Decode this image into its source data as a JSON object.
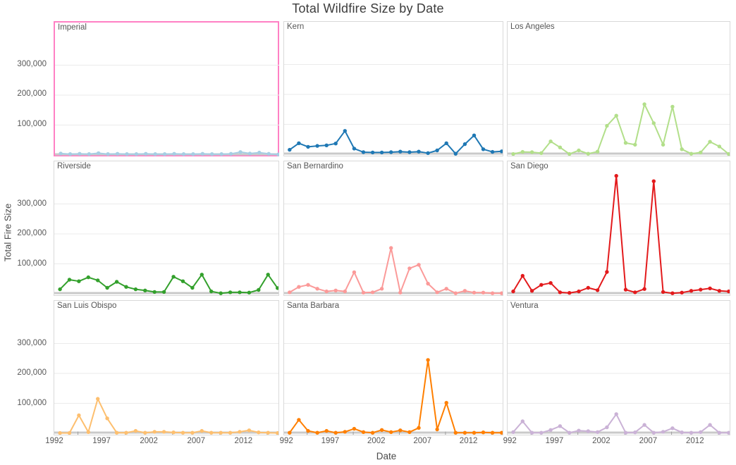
{
  "title": "Total Wildfire Size by Date",
  "y_axis": {
    "title": "Total Fire Size",
    "tick_labels": [
      "300,000",
      "200,000",
      "100,000"
    ],
    "tick_values": [
      300000,
      200000,
      100000
    ]
  },
  "x_axis": {
    "title": "Date",
    "tick_labels": [
      "1992",
      "1997",
      "2002",
      "2007",
      "2012"
    ],
    "tick_values": [
      1992,
      1997,
      2002,
      2007,
      2012
    ]
  },
  "selection": {
    "selected_facet": "Imperial",
    "highlight_color": "#ff80c4"
  },
  "chart_data": {
    "type": "line",
    "title": "Total Wildfire Size by Date",
    "xlabel": "Date",
    "ylabel": "Total Fire Size",
    "facet_layout": "3x3 small multiples by county",
    "grid": "horizontal gridlines on",
    "legend": "none",
    "x": [
      1992,
      1993,
      1994,
      1995,
      1996,
      1997,
      1998,
      1999,
      2000,
      2001,
      2002,
      2003,
      2004,
      2005,
      2006,
      2007,
      2008,
      2009,
      2010,
      2011,
      2012,
      2013,
      2014,
      2015
    ],
    "x_tick_values": [
      1992,
      1997,
      2002,
      2007,
      2012
    ],
    "y_tick_values": [
      100000,
      200000,
      300000
    ],
    "ylim": [
      0,
      445000
    ],
    "series": [
      {
        "name": "Imperial",
        "color": "#a6cee3",
        "values": [
          5000,
          3000,
          4000,
          3000,
          6000,
          3000,
          4000,
          3000,
          3000,
          4000,
          3000,
          3000,
          4000,
          3000,
          3000,
          4000,
          3000,
          3000,
          4000,
          10000,
          5000,
          8000,
          4000,
          2000
        ]
      },
      {
        "name": "Kern",
        "color": "#1f78b4",
        "values": [
          15000,
          37000,
          25000,
          28000,
          30000,
          36000,
          78000,
          19000,
          7000,
          6000,
          6000,
          7000,
          9000,
          7000,
          9000,
          4000,
          13000,
          37000,
          2000,
          34000,
          63000,
          17000,
          8000,
          10000
        ]
      },
      {
        "name": "Los Angeles",
        "color": "#b2df8a",
        "values": [
          1000,
          8000,
          7000,
          4000,
          43000,
          23000,
          1000,
          13000,
          2000,
          9000,
          95000,
          129000,
          38000,
          32000,
          167000,
          104000,
          32000,
          159000,
          17000,
          2000,
          6000,
          42000,
          26000,
          1000
        ]
      },
      {
        "name": "Riverside",
        "color": "#33a02c",
        "values": [
          15000,
          47000,
          42000,
          55000,
          45000,
          20000,
          40000,
          23000,
          15000,
          11000,
          6000,
          6000,
          57000,
          42000,
          20000,
          64000,
          8000,
          2000,
          5000,
          5000,
          4000,
          13000,
          64000,
          19000
        ]
      },
      {
        "name": "San Bernardino",
        "color": "#fb9a99",
        "values": [
          5000,
          23000,
          30000,
          17000,
          8000,
          11000,
          8000,
          72000,
          4000,
          5000,
          17000,
          153000,
          4000,
          85000,
          97000,
          34000,
          5000,
          17000,
          2000,
          10000,
          4000,
          4000,
          2000,
          2000
        ]
      },
      {
        "name": "San Diego",
        "color": "#e31a1c",
        "values": [
          8000,
          60000,
          10000,
          30000,
          36000,
          5000,
          3000,
          8000,
          20000,
          12000,
          73000,
          394000,
          14000,
          5000,
          16000,
          376000,
          6000,
          2000,
          4000,
          10000,
          14000,
          18000,
          10000,
          8000
        ]
      },
      {
        "name": "San Luis Obispo",
        "color": "#fdbf6f",
        "values": [
          1000,
          1000,
          60000,
          4000,
          115000,
          50000,
          2000,
          2000,
          8000,
          2000,
          5000,
          5000,
          3000,
          2000,
          2000,
          8000,
          2000,
          2000,
          2000,
          5000,
          10000,
          3000,
          2000,
          1000
        ]
      },
      {
        "name": "Santa Barbara",
        "color": "#ff7f00",
        "values": [
          2000,
          45000,
          8000,
          2000,
          8000,
          2000,
          5000,
          15000,
          4000,
          2000,
          11000,
          4000,
          10000,
          4000,
          18000,
          245000,
          13000,
          102000,
          2000,
          2000,
          2000,
          3000,
          2000,
          2000
        ]
      },
      {
        "name": "Ventura",
        "color": "#cab2d6",
        "values": [
          4000,
          40000,
          2000,
          2000,
          11000,
          24000,
          2000,
          9000,
          7000,
          4000,
          20000,
          64000,
          2000,
          3000,
          28000,
          2000,
          5000,
          17000,
          3000,
          2000,
          4000,
          28000,
          2000,
          2000
        ]
      }
    ]
  }
}
